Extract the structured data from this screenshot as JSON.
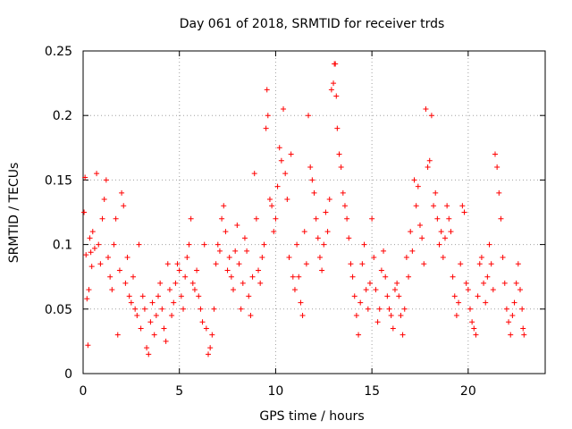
{
  "chart_data": {
    "type": "scatter",
    "title": "Day 061 of 2018, SRMTID for receiver trds",
    "xlabel": "GPS time / hours",
    "ylabel": "SRMTID / TECUs",
    "xlim": [
      0,
      24
    ],
    "ylim": [
      0,
      0.25
    ],
    "xticks": [
      0,
      5,
      10,
      15,
      20
    ],
    "yticks": [
      0,
      0.05,
      0.1,
      0.15,
      0.2,
      0.25
    ],
    "xtick_labels": [
      "0",
      "5",
      "10",
      "15",
      "20"
    ],
    "ytick_labels": [
      "0",
      "0.05",
      "0.1",
      "0.15",
      "0.2",
      "0.25"
    ],
    "grid": true,
    "marker": "+",
    "color": "#ff0000",
    "series": [
      {
        "name": "SRMTID",
        "points": [
          [
            0.05,
            0.125
          ],
          [
            0.1,
            0.152
          ],
          [
            0.15,
            0.092
          ],
          [
            0.2,
            0.058
          ],
          [
            0.25,
            0.022
          ],
          [
            0.3,
            0.065
          ],
          [
            0.35,
            0.105
          ],
          [
            0.4,
            0.094
          ],
          [
            0.45,
            0.083
          ],
          [
            0.5,
            0.11
          ],
          [
            0.6,
            0.097
          ],
          [
            0.7,
            0.155
          ],
          [
            0.8,
            0.1
          ],
          [
            0.9,
            0.085
          ],
          [
            1.0,
            0.12
          ],
          [
            1.1,
            0.135
          ],
          [
            1.2,
            0.15
          ],
          [
            1.3,
            0.09
          ],
          [
            1.4,
            0.075
          ],
          [
            1.5,
            0.065
          ],
          [
            1.6,
            0.1
          ],
          [
            1.7,
            0.12
          ],
          [
            1.8,
            0.03
          ],
          [
            1.9,
            0.08
          ],
          [
            2.0,
            0.14
          ],
          [
            2.1,
            0.13
          ],
          [
            2.2,
            0.07
          ],
          [
            2.3,
            0.09
          ],
          [
            2.4,
            0.06
          ],
          [
            2.5,
            0.055
          ],
          [
            2.6,
            0.075
          ],
          [
            2.7,
            0.05
          ],
          [
            2.8,
            0.045
          ],
          [
            2.9,
            0.1
          ],
          [
            3.0,
            0.035
          ],
          [
            3.1,
            0.06
          ],
          [
            3.2,
            0.05
          ],
          [
            3.3,
            0.02
          ],
          [
            3.4,
            0.015
          ],
          [
            3.5,
            0.04
          ],
          [
            3.6,
            0.055
          ],
          [
            3.7,
            0.03
          ],
          [
            3.8,
            0.045
          ],
          [
            3.9,
            0.06
          ],
          [
            4.0,
            0.07
          ],
          [
            4.1,
            0.05
          ],
          [
            4.2,
            0.035
          ],
          [
            4.3,
            0.025
          ],
          [
            4.4,
            0.085
          ],
          [
            4.5,
            0.065
          ],
          [
            4.6,
            0.045
          ],
          [
            4.7,
            0.055
          ],
          [
            4.8,
            0.07
          ],
          [
            4.9,
            0.085
          ],
          [
            5.0,
            0.08
          ],
          [
            5.1,
            0.06
          ],
          [
            5.2,
            0.05
          ],
          [
            5.3,
            0.075
          ],
          [
            5.4,
            0.09
          ],
          [
            5.5,
            0.1
          ],
          [
            5.6,
            0.12
          ],
          [
            5.7,
            0.07
          ],
          [
            5.8,
            0.065
          ],
          [
            5.9,
            0.08
          ],
          [
            6.0,
            0.06
          ],
          [
            6.1,
            0.05
          ],
          [
            6.2,
            0.04
          ],
          [
            6.3,
            0.1
          ],
          [
            6.4,
            0.035
          ],
          [
            6.5,
            0.015
          ],
          [
            6.6,
            0.02
          ],
          [
            6.7,
            0.03
          ],
          [
            6.8,
            0.05
          ],
          [
            6.9,
            0.085
          ],
          [
            7.0,
            0.1
          ],
          [
            7.1,
            0.095
          ],
          [
            7.2,
            0.12
          ],
          [
            7.3,
            0.13
          ],
          [
            7.4,
            0.11
          ],
          [
            7.5,
            0.08
          ],
          [
            7.6,
            0.09
          ],
          [
            7.7,
            0.075
          ],
          [
            7.8,
            0.065
          ],
          [
            7.9,
            0.095
          ],
          [
            8.0,
            0.115
          ],
          [
            8.1,
            0.085
          ],
          [
            8.2,
            0.05
          ],
          [
            8.3,
            0.07
          ],
          [
            8.4,
            0.105
          ],
          [
            8.5,
            0.095
          ],
          [
            8.6,
            0.06
          ],
          [
            8.7,
            0.045
          ],
          [
            8.8,
            0.075
          ],
          [
            8.9,
            0.155
          ],
          [
            9.0,
            0.12
          ],
          [
            9.1,
            0.08
          ],
          [
            9.2,
            0.07
          ],
          [
            9.3,
            0.09
          ],
          [
            9.4,
            0.1
          ],
          [
            9.5,
            0.19
          ],
          [
            9.55,
            0.22
          ],
          [
            9.6,
            0.2
          ],
          [
            9.7,
            0.135
          ],
          [
            9.8,
            0.13
          ],
          [
            9.9,
            0.11
          ],
          [
            10.0,
            0.12
          ],
          [
            10.1,
            0.145
          ],
          [
            10.2,
            0.175
          ],
          [
            10.3,
            0.165
          ],
          [
            10.4,
            0.205
          ],
          [
            10.5,
            0.155
          ],
          [
            10.6,
            0.135
          ],
          [
            10.7,
            0.09
          ],
          [
            10.8,
            0.17
          ],
          [
            10.9,
            0.075
          ],
          [
            11.0,
            0.065
          ],
          [
            11.1,
            0.1
          ],
          [
            11.2,
            0.075
          ],
          [
            11.3,
            0.055
          ],
          [
            11.4,
            0.045
          ],
          [
            11.5,
            0.11
          ],
          [
            11.6,
            0.085
          ],
          [
            11.7,
            0.2
          ],
          [
            11.8,
            0.16
          ],
          [
            11.9,
            0.15
          ],
          [
            12.0,
            0.14
          ],
          [
            12.1,
            0.12
          ],
          [
            12.2,
            0.105
          ],
          [
            12.3,
            0.09
          ],
          [
            12.4,
            0.08
          ],
          [
            12.5,
            0.1
          ],
          [
            12.6,
            0.125
          ],
          [
            12.7,
            0.11
          ],
          [
            12.8,
            0.135
          ],
          [
            12.9,
            0.22
          ],
          [
            13.0,
            0.225
          ],
          [
            13.05,
            0.24
          ],
          [
            13.1,
            0.24
          ],
          [
            13.15,
            0.215
          ],
          [
            13.2,
            0.19
          ],
          [
            13.3,
            0.17
          ],
          [
            13.4,
            0.16
          ],
          [
            13.5,
            0.14
          ],
          [
            13.6,
            0.13
          ],
          [
            13.7,
            0.12
          ],
          [
            13.8,
            0.105
          ],
          [
            13.9,
            0.085
          ],
          [
            14.0,
            0.075
          ],
          [
            14.1,
            0.06
          ],
          [
            14.2,
            0.045
          ],
          [
            14.3,
            0.03
          ],
          [
            14.4,
            0.055
          ],
          [
            14.5,
            0.085
          ],
          [
            14.6,
            0.1
          ],
          [
            14.7,
            0.065
          ],
          [
            14.8,
            0.05
          ],
          [
            14.9,
            0.07
          ],
          [
            15.0,
            0.12
          ],
          [
            15.1,
            0.09
          ],
          [
            15.2,
            0.065
          ],
          [
            15.3,
            0.04
          ],
          [
            15.4,
            0.05
          ],
          [
            15.5,
            0.08
          ],
          [
            15.6,
            0.095
          ],
          [
            15.7,
            0.075
          ],
          [
            15.8,
            0.06
          ],
          [
            15.9,
            0.05
          ],
          [
            16.0,
            0.045
          ],
          [
            16.1,
            0.035
          ],
          [
            16.2,
            0.065
          ],
          [
            16.3,
            0.07
          ],
          [
            16.4,
            0.06
          ],
          [
            16.5,
            0.045
          ],
          [
            16.6,
            0.03
          ],
          [
            16.7,
            0.05
          ],
          [
            16.8,
            0.09
          ],
          [
            16.9,
            0.075
          ],
          [
            17.0,
            0.11
          ],
          [
            17.1,
            0.095
          ],
          [
            17.2,
            0.15
          ],
          [
            17.3,
            0.13
          ],
          [
            17.4,
            0.145
          ],
          [
            17.5,
            0.115
          ],
          [
            17.6,
            0.105
          ],
          [
            17.7,
            0.085
          ],
          [
            17.8,
            0.205
          ],
          [
            17.9,
            0.16
          ],
          [
            18.0,
            0.165
          ],
          [
            18.1,
            0.2
          ],
          [
            18.2,
            0.13
          ],
          [
            18.3,
            0.14
          ],
          [
            18.4,
            0.12
          ],
          [
            18.5,
            0.1
          ],
          [
            18.6,
            0.11
          ],
          [
            18.7,
            0.09
          ],
          [
            18.8,
            0.105
          ],
          [
            18.9,
            0.13
          ],
          [
            19.0,
            0.12
          ],
          [
            19.1,
            0.11
          ],
          [
            19.2,
            0.075
          ],
          [
            19.3,
            0.06
          ],
          [
            19.4,
            0.045
          ],
          [
            19.5,
            0.055
          ],
          [
            19.6,
            0.085
          ],
          [
            19.7,
            0.13
          ],
          [
            19.8,
            0.125
          ],
          [
            19.9,
            0.07
          ],
          [
            20.0,
            0.065
          ],
          [
            20.1,
            0.05
          ],
          [
            20.2,
            0.04
          ],
          [
            20.3,
            0.035
          ],
          [
            20.4,
            0.03
          ],
          [
            20.5,
            0.06
          ],
          [
            20.6,
            0.085
          ],
          [
            20.7,
            0.09
          ],
          [
            20.8,
            0.07
          ],
          [
            20.9,
            0.055
          ],
          [
            21.0,
            0.075
          ],
          [
            21.1,
            0.1
          ],
          [
            21.2,
            0.085
          ],
          [
            21.3,
            0.065
          ],
          [
            21.4,
            0.17
          ],
          [
            21.5,
            0.16
          ],
          [
            21.6,
            0.14
          ],
          [
            21.7,
            0.12
          ],
          [
            21.8,
            0.09
          ],
          [
            21.9,
            0.07
          ],
          [
            22.0,
            0.05
          ],
          [
            22.1,
            0.04
          ],
          [
            22.2,
            0.03
          ],
          [
            22.3,
            0.045
          ],
          [
            22.4,
            0.055
          ],
          [
            22.5,
            0.07
          ],
          [
            22.6,
            0.085
          ],
          [
            22.7,
            0.065
          ],
          [
            22.8,
            0.05
          ],
          [
            22.85,
            0.035
          ],
          [
            22.9,
            0.03
          ]
        ]
      }
    ]
  }
}
